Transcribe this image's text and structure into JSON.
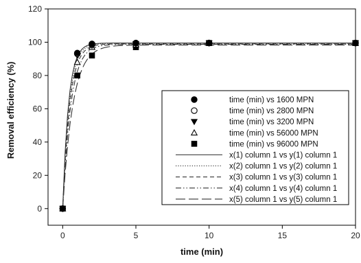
{
  "chart_data": {
    "type": "scatter",
    "xlabel": "time (min)",
    "ylabel": "Removal efficiency (%)",
    "xlim": [
      -1,
      20
    ],
    "ylim": [
      -10,
      120
    ],
    "xticks": [
      0,
      5,
      10,
      15,
      20
    ],
    "yticks": [
      0,
      20,
      40,
      60,
      80,
      100,
      120
    ],
    "grid": false,
    "legend_position": "center-right",
    "series": [
      {
        "name": "time (min) vs 1600 MPN",
        "marker": "filled-circle",
        "x": [
          0,
          1,
          2,
          5,
          10,
          20
        ],
        "y": [
          0,
          93.5,
          99,
          99.5,
          99.5,
          99.5
        ]
      },
      {
        "name": "time (min) vs 2800 MPN",
        "marker": "open-circle",
        "x": [
          0,
          1,
          2,
          5,
          10,
          20
        ],
        "y": [
          0,
          93,
          98.5,
          99.5,
          99.5,
          99.5
        ]
      },
      {
        "name": "time (min) vs 3200 MPN",
        "marker": "filled-triangle-down",
        "x": [
          0,
          1,
          2,
          5,
          10,
          20
        ],
        "y": [
          0,
          92,
          98,
          99,
          99.5,
          99.5
        ]
      },
      {
        "name": "time (min) vs 56000 MPN",
        "marker": "open-triangle-up",
        "x": [
          0,
          1,
          2,
          5,
          10,
          20
        ],
        "y": [
          0,
          88,
          97,
          98.5,
          99.5,
          99.5
        ]
      },
      {
        "name": "time (min) vs 96000 MPN",
        "marker": "filled-square",
        "x": [
          0,
          1,
          2,
          5,
          10,
          20
        ],
        "y": [
          0,
          80,
          92,
          97,
          99.5,
          99.5
        ]
      }
    ],
    "fits": [
      {
        "name": "x(1) column 1 vs y(1) column 1",
        "dash": "solid",
        "asymptote": 99.5,
        "rate": 2.5
      },
      {
        "name": "x(2) column 1 vs y(2) column 1",
        "dash": "dotted",
        "asymptote": 99.3,
        "rate": 2.3
      },
      {
        "name": "x(3) column 1 vs y(3) column 1",
        "dash": "short-dash",
        "asymptote": 99.0,
        "rate": 2.1
      },
      {
        "name": "x(4) column 1 vs y(4) column 1",
        "dash": "dash-dot-dot",
        "asymptote": 98.7,
        "rate": 1.8
      },
      {
        "name": "x(5) column 1 vs y(5) column 1",
        "dash": "long-dash",
        "asymptote": 98.3,
        "rate": 1.45
      }
    ]
  }
}
